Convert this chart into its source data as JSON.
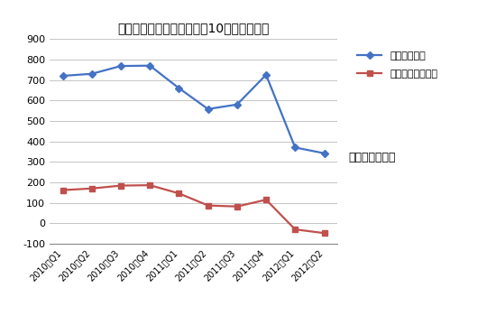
{
  "title": "德州仪器无线业务营收过去10个季度走势图",
  "quarters": [
    "2010年Q1",
    "2010年Q2",
    "2010年Q3",
    "2010年Q4",
    "2011年Q1",
    "2011年Q2",
    "2011年Q3",
    "2011年Q4",
    "2012年Q1",
    "2012年Q2"
  ],
  "revenue": [
    720,
    730,
    768,
    770,
    660,
    558,
    580,
    725,
    370,
    342
  ],
  "operating_profit": [
    162,
    170,
    184,
    186,
    146,
    87,
    82,
    115,
    -30,
    -48
  ],
  "revenue_label": "无线业务营收",
  "profit_label": "无线业务运营利润",
  "unit_label": "单位：百万美元",
  "revenue_color": "#4472C4",
  "profit_color": "#C0504D",
  "ylim_min": -100,
  "ylim_max": 900,
  "yticks": [
    -100,
    0,
    100,
    200,
    300,
    400,
    500,
    600,
    700,
    800,
    900
  ],
  "bg_color": "#FFFFFF",
  "grid_color": "#BBBBBB"
}
